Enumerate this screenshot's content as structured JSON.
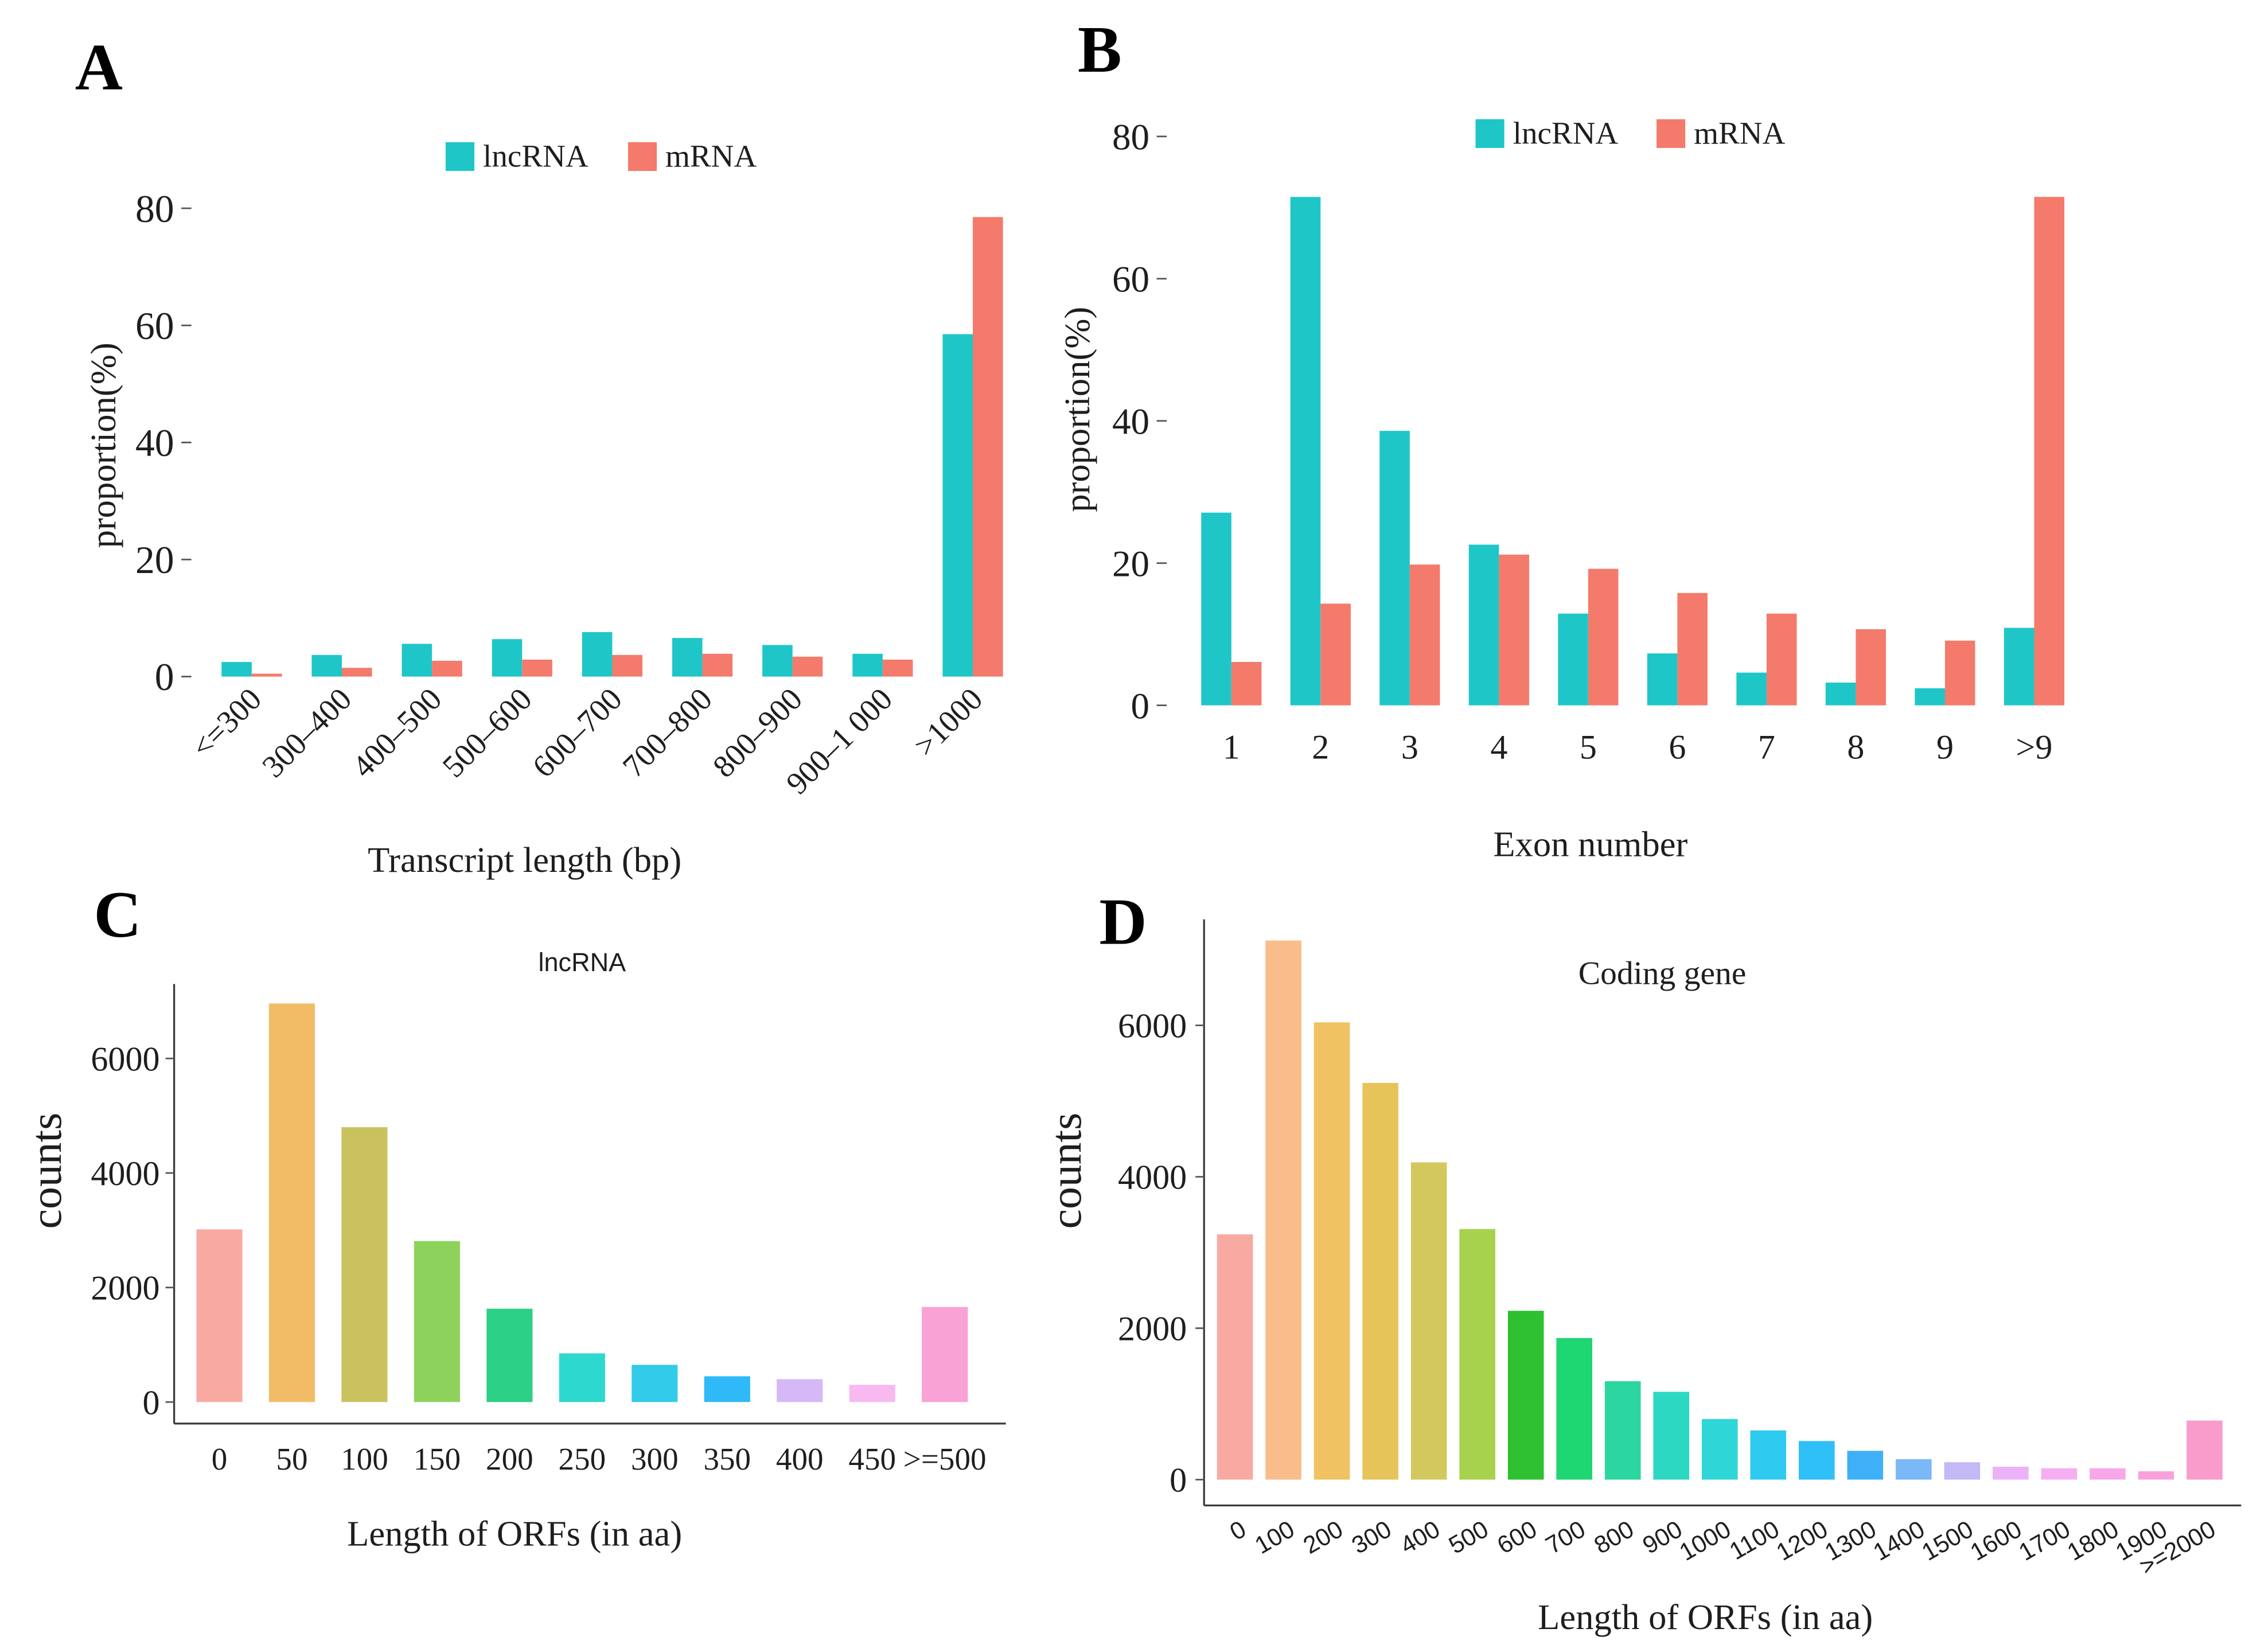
{
  "chart_data": [
    {
      "panel_label": "A",
      "type": "bar",
      "legend_position": "top",
      "categories": [
        "<=300",
        "300–400",
        "400–500",
        "500–600",
        "600–700",
        "700–800",
        "800–900",
        "900–1 000",
        ">1000"
      ],
      "series": [
        {
          "name": "lncRNA",
          "color": "#1fc6c8",
          "values": [
            2.5,
            3.7,
            5.6,
            6.4,
            7.6,
            6.6,
            5.4,
            3.9,
            58.5
          ]
        },
        {
          "name": "mRNA",
          "color": "#f47a6b",
          "values": [
            0.5,
            1.5,
            2.7,
            2.9,
            3.7,
            3.9,
            3.4,
            2.9,
            78.5
          ]
        }
      ],
      "xlabel": "Transcript length (bp)",
      "ylabel": "proportion(%)",
      "ylim": [
        0,
        80
      ],
      "yticks": [
        0,
        20,
        40,
        60,
        80
      ],
      "grid": false
    },
    {
      "panel_label": "B",
      "type": "bar",
      "legend_position": "top",
      "categories": [
        "1",
        "2",
        "3",
        "4",
        "5",
        "6",
        "7",
        "8",
        "9",
        ">9"
      ],
      "series": [
        {
          "name": "lncRNA",
          "color": "#1fc6c8",
          "values": [
            27.1,
            71.5,
            38.6,
            22.6,
            12.9,
            7.3,
            4.6,
            3.2,
            2.4,
            10.9
          ]
        },
        {
          "name": "mRNA",
          "color": "#f47a6b",
          "values": [
            6.1,
            14.3,
            19.8,
            21.2,
            19.2,
            15.8,
            12.9,
            10.7,
            9.1,
            71.5
          ]
        }
      ],
      "xlabel": "Exon number",
      "ylabel": "proportion(%)",
      "ylim": [
        0,
        80
      ],
      "yticks": [
        0,
        20,
        40,
        60,
        80
      ],
      "grid": false
    },
    {
      "panel_label": "C",
      "type": "bar",
      "title": "lncRNA",
      "categories": [
        "0",
        "50",
        "100",
        "150",
        "200",
        "250",
        "300",
        "350",
        "400",
        "450",
        ">=500"
      ],
      "values": [
        3015,
        6960,
        4800,
        2810,
        1630,
        850,
        650,
        450,
        400,
        300,
        1660
      ],
      "colors": [
        "#f8aaa2",
        "#f2bc66",
        "#c9c25e",
        "#8dd25a",
        "#2ccf86",
        "#2dd8cf",
        "#32ccea",
        "#2fb9f7",
        "#d6b8f7",
        "#f7b9f0",
        "#f9a2d6"
      ],
      "xlabel": "Length of ORFs (in aa)",
      "ylabel": "counts",
      "ylim": [
        0,
        7300
      ],
      "yticks": [
        0,
        2000,
        4000,
        6000
      ],
      "grid": false
    },
    {
      "panel_label": "D",
      "type": "bar",
      "title": "Coding gene",
      "categories": [
        "0",
        "100",
        "200",
        "300",
        "400",
        "500",
        "600",
        "700",
        "800",
        "900",
        "1000",
        "1100",
        "1200",
        "1300",
        "1400",
        "1500",
        "1600",
        "1700",
        "1800",
        "1900",
        ">=2000"
      ],
      "values": [
        3240,
        7120,
        6040,
        5240,
        4190,
        3310,
        2230,
        1870,
        1300,
        1160,
        800,
        650,
        510,
        380,
        270,
        230,
        170,
        150,
        150,
        110,
        780
      ],
      "colors": [
        "#f8aaa2",
        "#f8bd8a",
        "#f0c262",
        "#e6c45a",
        "#d2c85e",
        "#a6d24e",
        "#2ec02e",
        "#1ed672",
        "#2bd6a0",
        "#2dd8c2",
        "#2ed6d8",
        "#2fcaf0",
        "#30c0f8",
        "#3eb0f8",
        "#7ab8f7",
        "#c4b8f7",
        "#ecb2f7",
        "#f6aef2",
        "#f8a8e8",
        "#f8a2dc",
        "#f89ccc"
      ],
      "xlabel": "Length of ORFs (in aa)",
      "ylabel": "counts",
      "ylim": [
        0,
        7400
      ],
      "yticks": [
        0,
        2000,
        4000,
        6000
      ],
      "grid": false
    }
  ]
}
